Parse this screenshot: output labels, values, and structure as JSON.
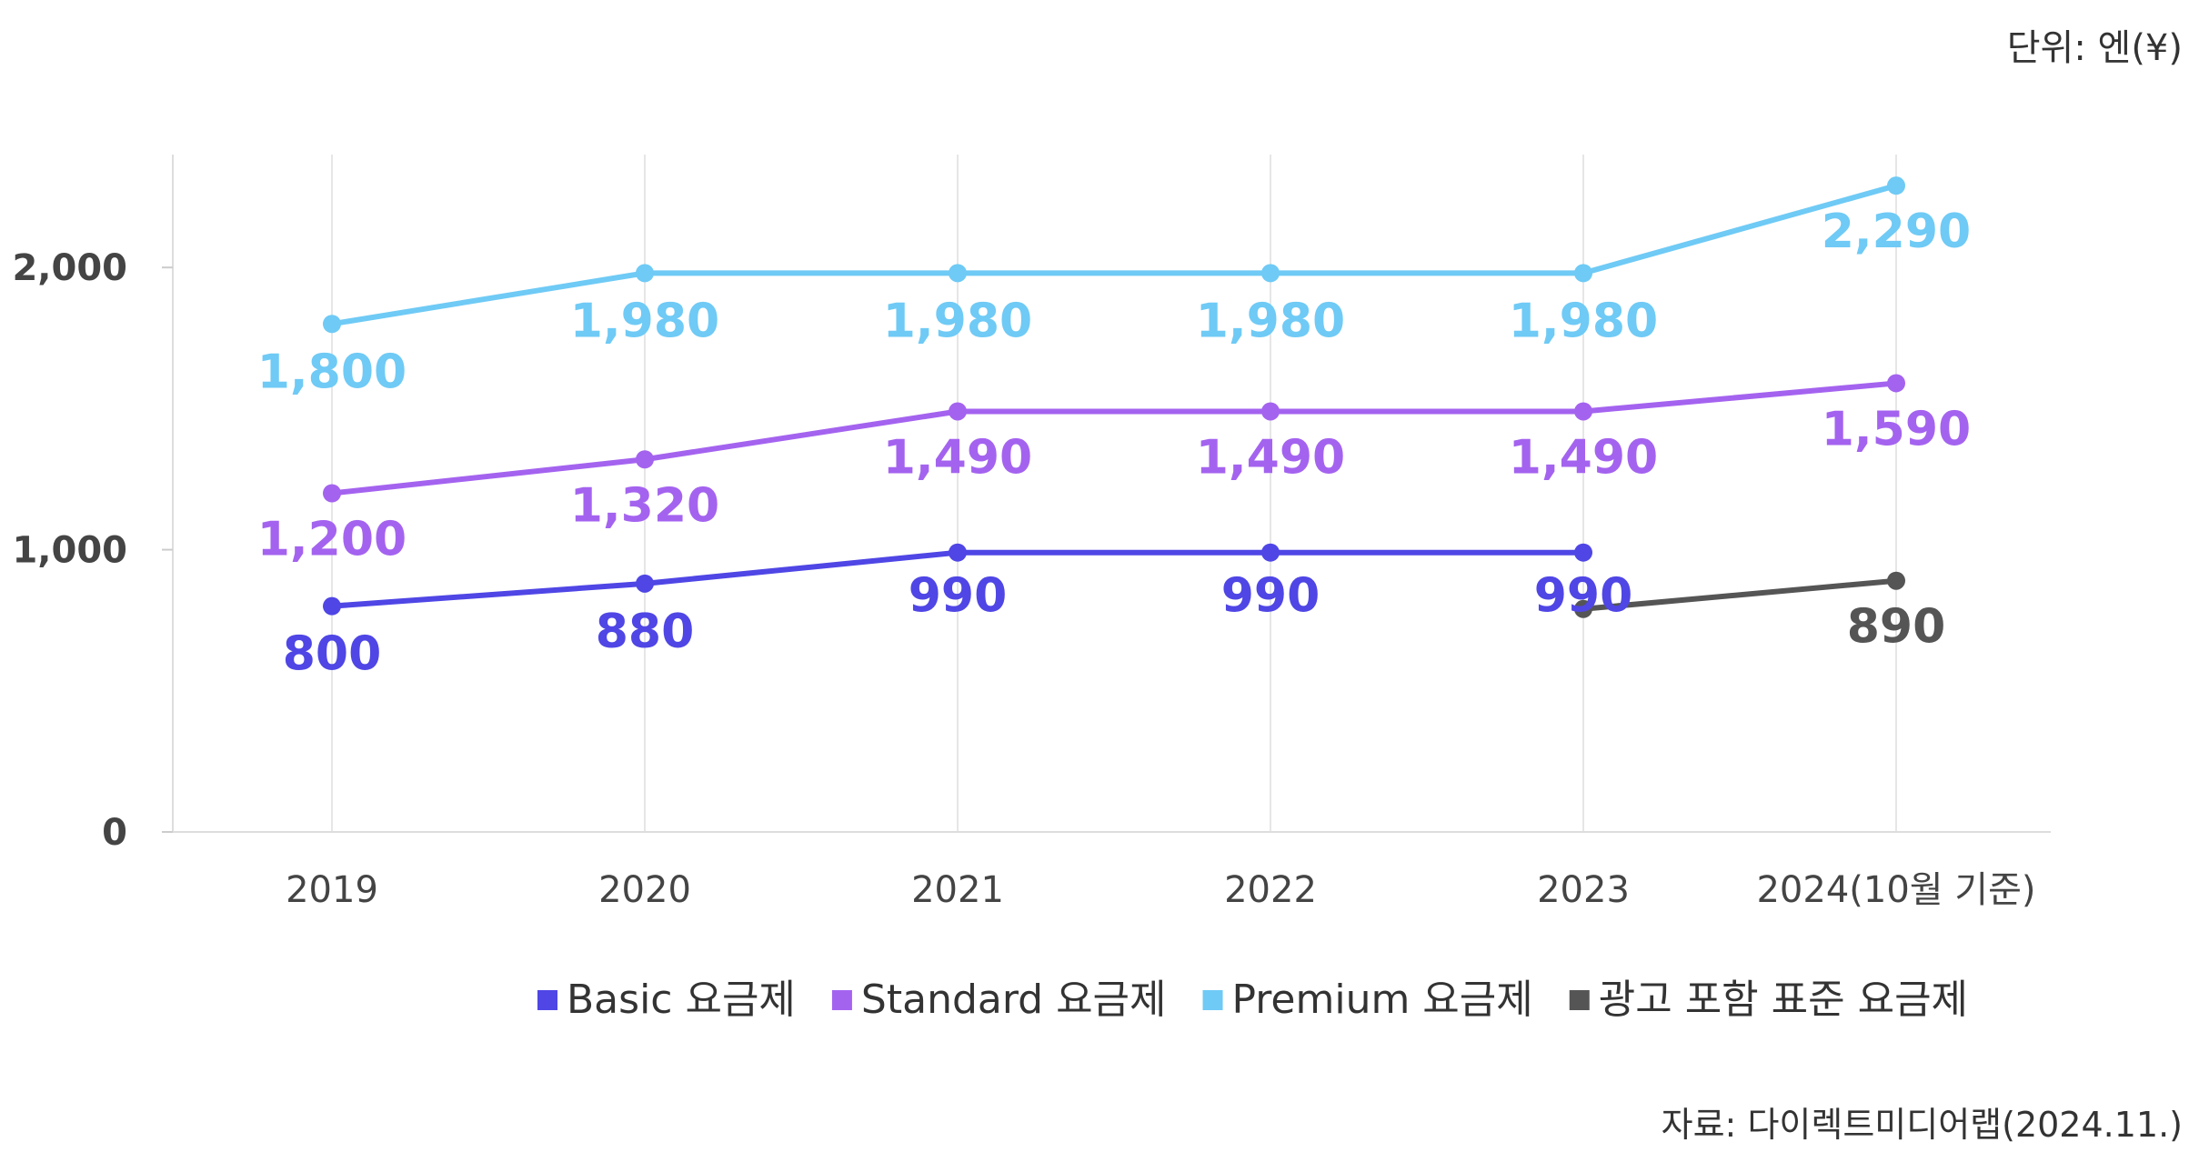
{
  "unit": "단위:  엔(¥)",
  "source": "자료: 다이렉트미디어랩(2024.11.)",
  "chart_data": {
    "type": "line",
    "categories": [
      "2019",
      "2020",
      "2021",
      "2022",
      "2023",
      "2024(10월 기준)"
    ],
    "ylim": [
      0,
      2400
    ],
    "yticks": [
      0,
      1000,
      2000
    ],
    "ytick_labels": [
      "0",
      "1,000",
      "2,000"
    ],
    "grid": "vertical",
    "legend_position": "bottom-center",
    "series": [
      {
        "name": "Basic 요금제",
        "color": "#4f46e5",
        "values": [
          800,
          880,
          990,
          990,
          990,
          null
        ],
        "labels": [
          "800",
          "880",
          "990",
          "990",
          "990",
          ""
        ]
      },
      {
        "name": "Standard 요금제",
        "color": "#a463ef",
        "values": [
          1200,
          1320,
          1490,
          1490,
          1490,
          1590
        ],
        "labels": [
          "1,200",
          "1,320",
          "1,490",
          "1,490",
          "1,490",
          "1,590"
        ]
      },
      {
        "name": "Premium 요금제",
        "color": "#6fcaf5",
        "values": [
          1800,
          1980,
          1980,
          1980,
          1980,
          2290
        ],
        "labels": [
          "1,800",
          "1,980",
          "1,980",
          "1,980",
          "1,980",
          "2,290"
        ]
      },
      {
        "name": "광고 포함 표준 요금제",
        "color": "#555555",
        "values": [
          null,
          null,
          null,
          null,
          790,
          890
        ],
        "labels": [
          "",
          "",
          "",
          "",
          "",
          "890"
        ]
      }
    ]
  }
}
